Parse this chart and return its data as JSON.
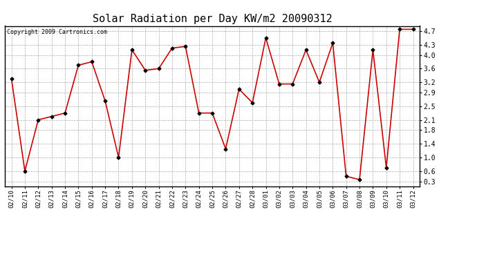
{
  "title": "Solar Radiation per Day KW/m2 20090312",
  "copyright": "Copyright 2009 Cartronics.com",
  "dates": [
    "02/10",
    "02/11",
    "02/12",
    "02/13",
    "02/14",
    "02/15",
    "02/16",
    "02/17",
    "02/18",
    "02/19",
    "02/20",
    "02/21",
    "02/22",
    "02/23",
    "02/24",
    "02/25",
    "02/26",
    "02/27",
    "02/28",
    "03/01",
    "03/02",
    "03/03",
    "03/04",
    "03/05",
    "03/06",
    "03/07",
    "03/08",
    "03/09",
    "03/10",
    "03/11",
    "03/12"
  ],
  "values": [
    3.3,
    0.6,
    2.1,
    2.2,
    2.3,
    3.7,
    3.8,
    2.65,
    1.0,
    4.15,
    3.55,
    3.6,
    4.2,
    4.25,
    2.3,
    2.3,
    1.25,
    3.0,
    2.6,
    4.5,
    3.15,
    3.15,
    4.15,
    3.2,
    4.35,
    0.45,
    0.35,
    4.15,
    0.7,
    4.75,
    4.75
  ],
  "line_color": "#cc0000",
  "marker": "D",
  "marker_color": "#000000",
  "marker_size": 2.5,
  "bg_color": "#ffffff",
  "grid_color": "#aaaaaa",
  "yticks": [
    0.3,
    0.6,
    1.0,
    1.4,
    1.8,
    2.1,
    2.5,
    2.9,
    3.2,
    3.6,
    4.0,
    4.3,
    4.7
  ],
  "ymin": 0.15,
  "ymax": 4.85,
  "title_fontsize": 11,
  "copyright_fontsize": 6,
  "tick_fontsize": 6.5,
  "ytick_fontsize": 7
}
